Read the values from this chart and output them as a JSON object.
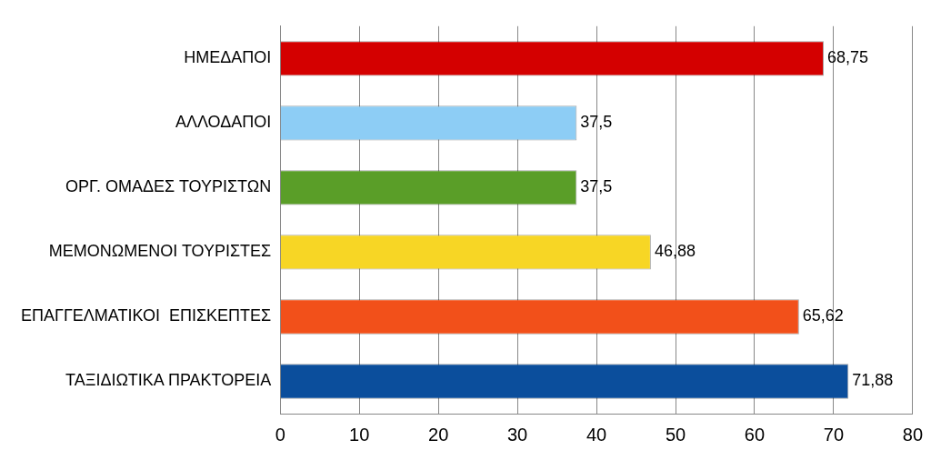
{
  "chart_data": {
    "type": "bar",
    "orientation": "horizontal",
    "categories": [
      "ΗΜΕΔΑΠΟΙ",
      "ΑΛΛΟΔΑΠΟΙ",
      "ΟΡΓ. ΟΜΑΔΕΣ ΤΟΥΡΙΣΤΩΝ",
      "ΜΕΜΟΝΩΜΕΝΟΙ ΤΟΥΡΙΣΤΕΣ",
      "ΕΠΑΓΓΕΛΜΑΤΙΚΟΙ  ΕΠΙΣΚΕΠΤΕΣ",
      "ΤΑΞΙΔΙΩΤΙΚΑ ΠΡΑΚΤΟΡΕΙΑ"
    ],
    "values": [
      68.75,
      37.5,
      37.5,
      46.88,
      65.62,
      71.88
    ],
    "value_labels": [
      "68,75",
      "37,5",
      "37,5",
      "46,88",
      "65,62",
      "71,88"
    ],
    "colors": [
      "#d40000",
      "#8dcdf5",
      "#5a9e28",
      "#f7d625",
      "#f2501a",
      "#0b4e9c"
    ],
    "xlim": [
      0,
      80
    ],
    "xticks": [
      0,
      10,
      20,
      30,
      40,
      50,
      60,
      70,
      80
    ],
    "grid": "x",
    "legend": false
  }
}
